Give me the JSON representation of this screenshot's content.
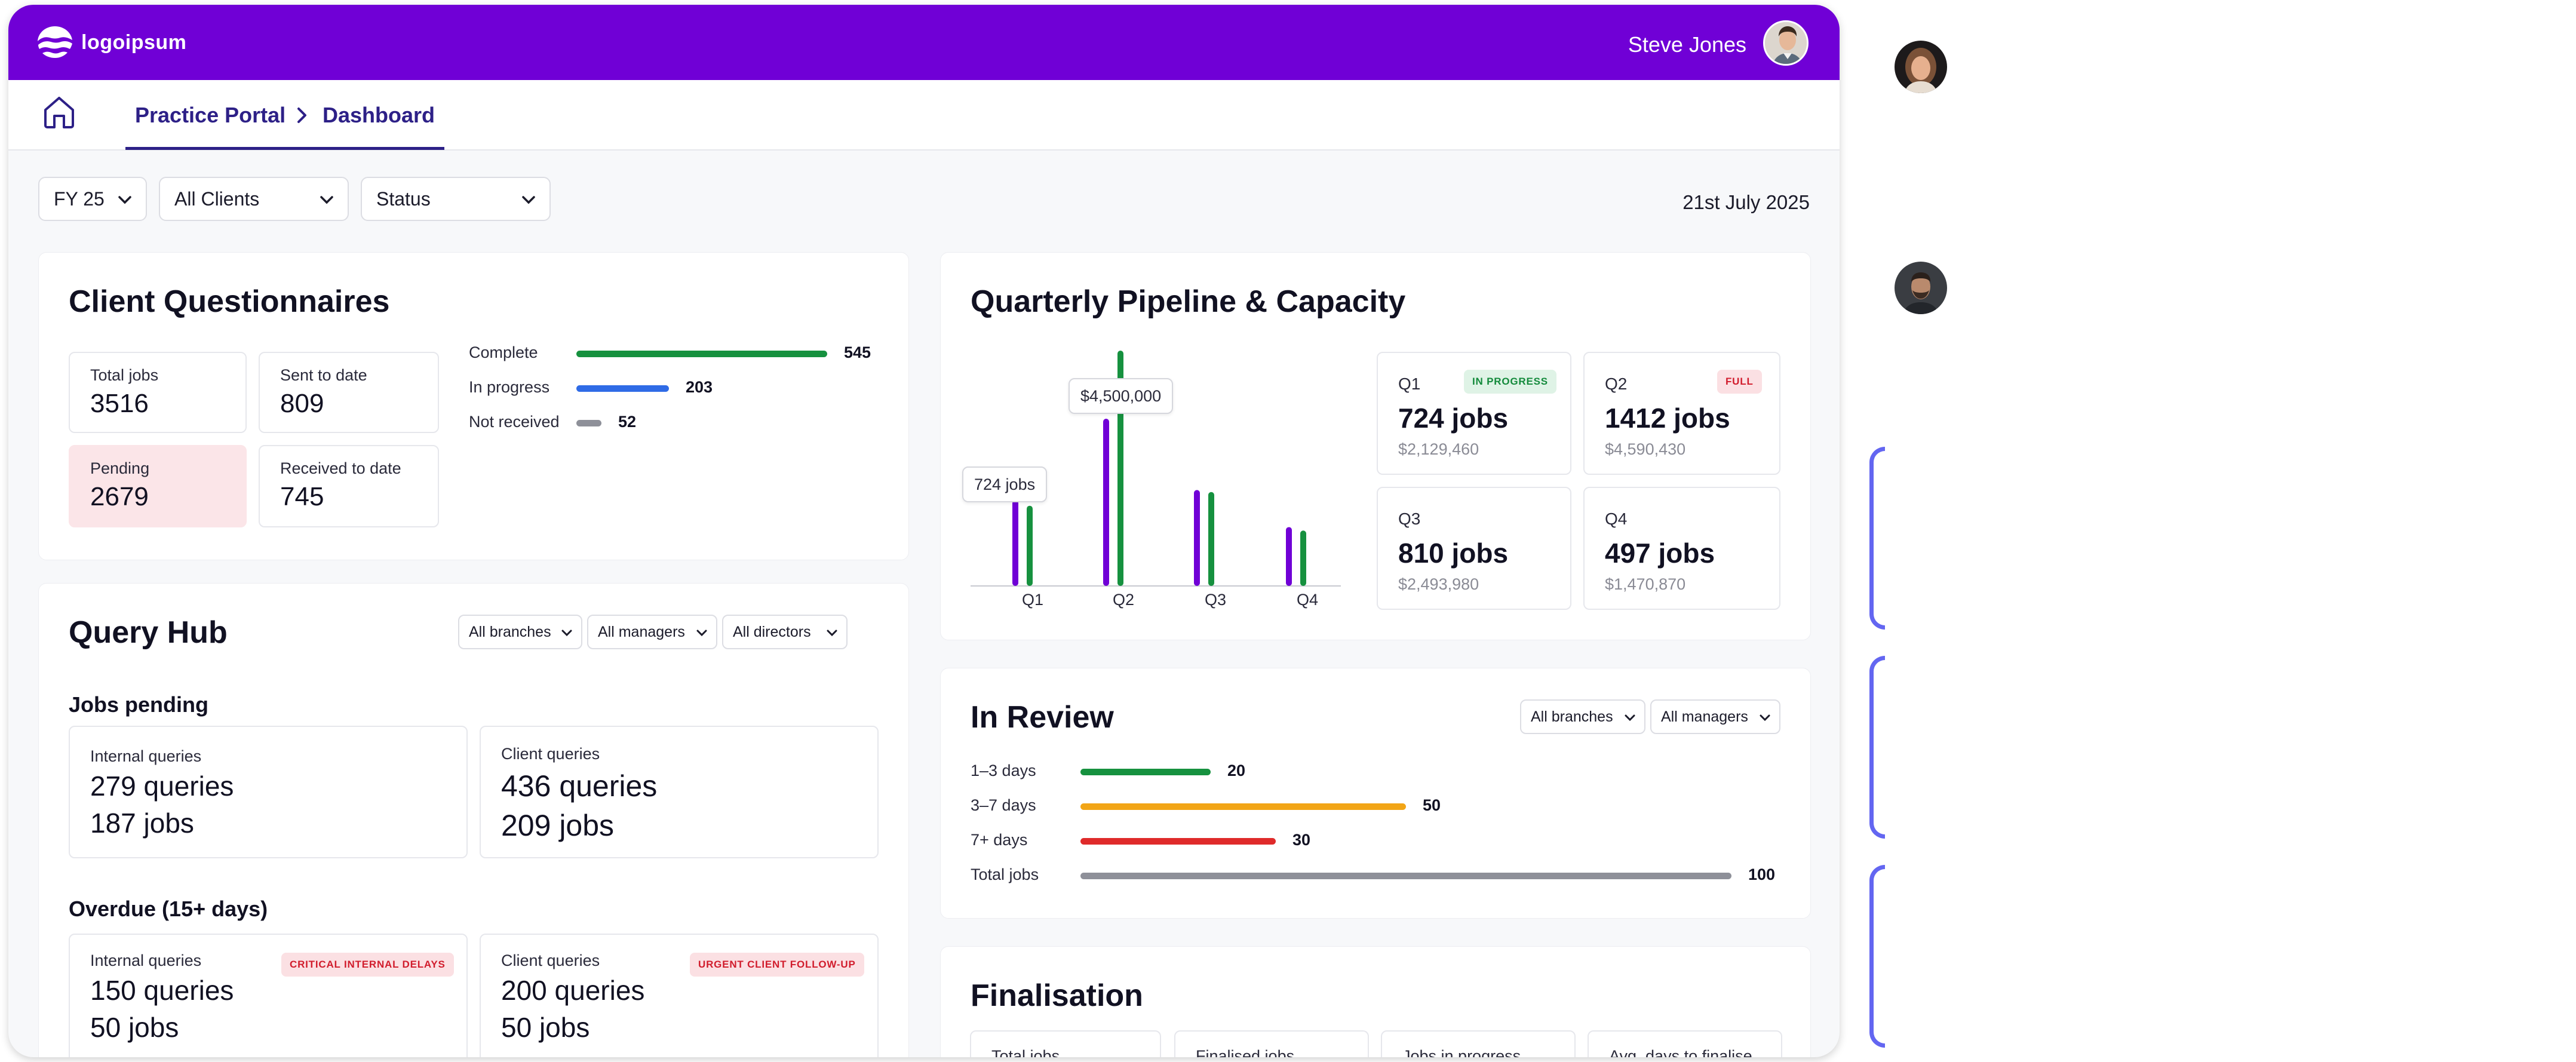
{
  "header": {
    "logo_text": "logoipsum",
    "user_name": "Steve Jones"
  },
  "breadcrumb": {
    "portal": "Practice Portal",
    "page": "Dashboard"
  },
  "filters": {
    "year": "FY 25",
    "clients": "All Clients",
    "status": "Status",
    "date": "21st July 2025"
  },
  "client_questionnaires": {
    "title": "Client Questionnaires",
    "stats": [
      {
        "label": "Total jobs",
        "value": "3516"
      },
      {
        "label": "Sent to date",
        "value": "809"
      },
      {
        "label": "Pending",
        "value": "2679"
      },
      {
        "label": "Received to date",
        "value": "745"
      }
    ],
    "bars": [
      {
        "label": "Complete",
        "value": "545",
        "fraction": 1.0,
        "color": "#16913f"
      },
      {
        "label": "In progress",
        "value": "203",
        "fraction": 0.37,
        "color": "#2f6be6"
      },
      {
        "label": "Not received",
        "value": "52",
        "fraction": 0.1,
        "color": "#8e9099"
      }
    ]
  },
  "query_hub": {
    "title": "Query Hub",
    "selects": [
      "All branches",
      "All managers",
      "All directors"
    ],
    "jobs_pending": {
      "heading": "Jobs pending",
      "internal": {
        "label": "Internal queries",
        "queries": "279 queries",
        "jobs": "187 jobs"
      },
      "client": {
        "label": "Client queries",
        "queries": "436 queries",
        "jobs": "209 jobs"
      }
    },
    "overdue": {
      "heading": "Overdue (15+ days)",
      "internal": {
        "label": "Internal queries",
        "queries": "150 queries",
        "jobs": "50 jobs",
        "tag": "CRITICAL INTERNAL DELAYS"
      },
      "client": {
        "label": "Client queries",
        "queries": "200 queries",
        "jobs": "50 jobs",
        "tag": "URGENT CLIENT FOLLOW-UP"
      }
    }
  },
  "pipeline": {
    "title": "Quarterly Pipeline & Capacity",
    "tooltip_jobs": "724 jobs",
    "tooltip_amount": "$4,500,000",
    "quarters": [
      {
        "label": "Q1",
        "jobs": "724 jobs",
        "amount": "$2,129,460",
        "badge": "IN PROGRESS"
      },
      {
        "label": "Q2",
        "jobs": "1412 jobs",
        "amount": "$4,590,430",
        "badge": "FULL"
      },
      {
        "label": "Q3",
        "jobs": "810 jobs",
        "amount": "$2,493,980",
        "badge": ""
      },
      {
        "label": "Q4",
        "jobs": "497 jobs",
        "amount": "$1,470,870",
        "badge": ""
      }
    ],
    "colors": {
      "jobs": "#7000d6",
      "amount": "#16913f"
    }
  },
  "in_review": {
    "title": "In Review",
    "selects": [
      "All branches",
      "All managers"
    ],
    "bars": [
      {
        "label": "1–3 days",
        "value": "20",
        "fraction": 0.2,
        "color": "#16913f"
      },
      {
        "label": "3–7 days",
        "value": "50",
        "fraction": 0.5,
        "color": "#f2a516"
      },
      {
        "label": "7+ days",
        "value": "30",
        "fraction": 0.3,
        "color": "#df2a2a"
      },
      {
        "label": "Total jobs",
        "value": "100",
        "fraction": 1.0,
        "color": "#8e9099"
      }
    ]
  },
  "finalisation": {
    "title": "Finalisation",
    "boxes": [
      "Total jobs",
      "Finalised jobs",
      "Jobs in progress",
      "Avg. days to finalise"
    ]
  }
}
